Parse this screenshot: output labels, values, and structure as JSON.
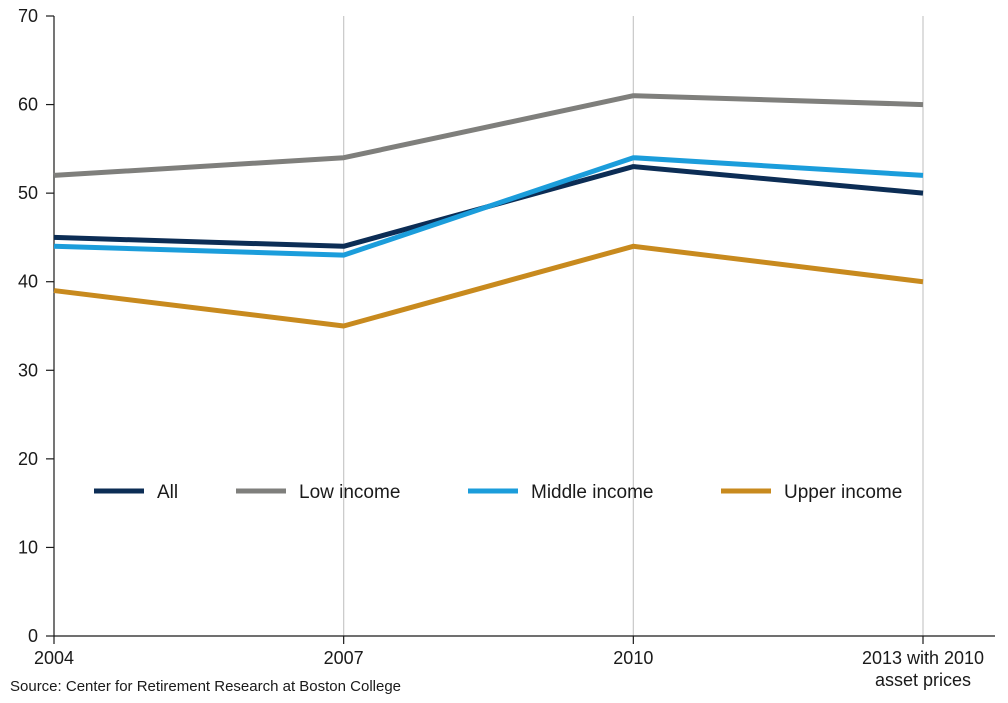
{
  "chart_data": {
    "type": "line",
    "categories": [
      "2004",
      "2007",
      "2010",
      "2013 with 2010\nasset prices"
    ],
    "series": [
      {
        "name": "All",
        "values": [
          45,
          44,
          53,
          50
        ],
        "color": "#0c2d55"
      },
      {
        "name": "Low income",
        "values": [
          52,
          54,
          61,
          60
        ],
        "color": "#7f7f7c"
      },
      {
        "name": "Middle income",
        "values": [
          44,
          43,
          54,
          52
        ],
        "color": "#1b9ddb"
      },
      {
        "name": "Upper income",
        "values": [
          39,
          35,
          44,
          40
        ],
        "color": "#c88a1e"
      }
    ],
    "ylim": [
      0,
      70
    ],
    "yticks": [
      0,
      10,
      20,
      30,
      40,
      50,
      60,
      70
    ],
    "grid": "vertical",
    "legend_placement": "inside, lower middle"
  },
  "source": "Source: Center for Retirement Research at Boston College"
}
